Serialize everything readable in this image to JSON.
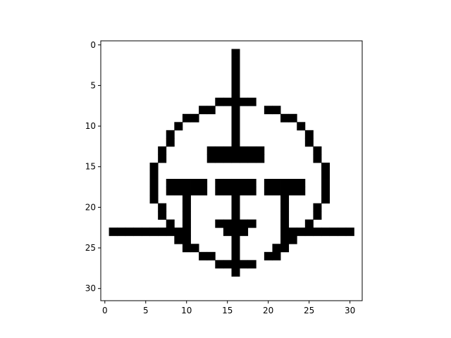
{
  "chart_data": {
    "type": "heatmap",
    "title": "",
    "xlabel": "",
    "ylabel": "",
    "xlim": [
      -0.5,
      31.5
    ],
    "ylim": [
      31.5,
      -0.5
    ],
    "y_inverted": true,
    "grid": false,
    "legend": "none",
    "colormap": "binary",
    "colors": {
      "on": "#000000",
      "off": "#ffffff",
      "axis": "#000000"
    },
    "x_ticks": [
      0,
      5,
      10,
      15,
      20,
      25,
      30
    ],
    "x_tick_labels": [
      "0",
      "5",
      "10",
      "15",
      "20",
      "25",
      "30"
    ],
    "y_ticks": [
      0,
      5,
      10,
      15,
      20,
      25,
      30
    ],
    "y_tick_labels": [
      "0",
      "5",
      "10",
      "15",
      "20",
      "25",
      "30"
    ],
    "rows": 32,
    "cols": 32,
    "matrix": [
      "00000000000000000000000000000000",
      "00000000000000001000000000000000",
      "00000000000000001000000000000000",
      "00000000000000001000000000000000",
      "00000000000000001000000000000000",
      "00000000000000001000000000000000",
      "00000000000000001000000000000000",
      "00000000000000111110000000000000",
      "00000000000011001000110000000000",
      "00000000001100001000001100000000",
      "00000000010000001000000010000000",
      "00000000100000001000000001000000",
      "00000000100000001000000001000000",
      "00000001000001111111000000100000",
      "00000001000001111111000000100000",
      "00000010000000000000000000010000",
      "00000010000000000000000000010000",
      "00000010111110111110111110010000",
      "00000010111110111110111110010000",
      "00000010001000001000001000010000",
      "00000001001000001000001000100000",
      "00000001001000001000001000100000",
      "00000000101000111110001001000000",
      "01111111111000011100001111111110",
      "00000000011000001000001100000000",
      "00000000001100001000011000000000",
      "00000000000011001000110000000000",
      "00000000000000111110000000000000",
      "00000000000000001000000000000000",
      "00000000000000000000000000000000",
      "00000000000000000000000000000000",
      "00000000000000000000000000000000"
    ]
  }
}
